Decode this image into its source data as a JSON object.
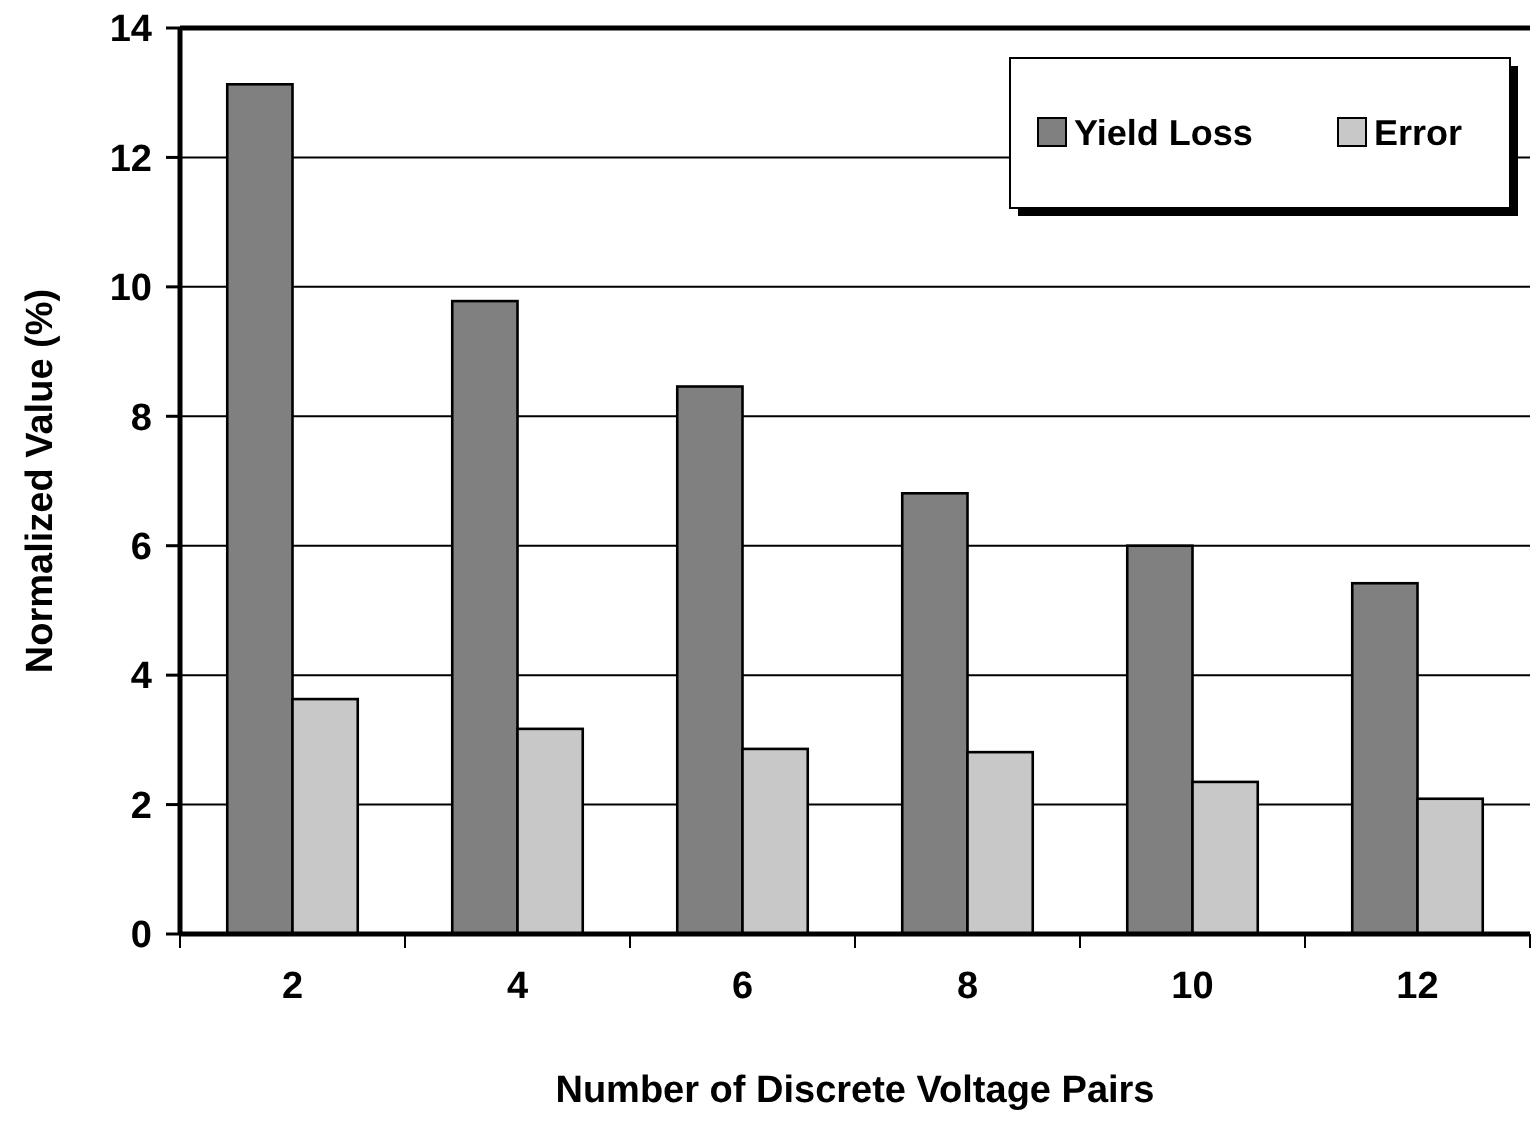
{
  "chart_data": {
    "type": "bar",
    "xlabel": "Number of Discrete Voltage Pairs",
    "ylabel": "Normalized Value (%)",
    "categories": [
      "2",
      "4",
      "6",
      "8",
      "10",
      "12"
    ],
    "series": [
      {
        "name": "Yield Loss",
        "color": "#808080",
        "values": [
          13.13,
          9.78,
          8.46,
          6.81,
          6.0,
          5.42
        ]
      },
      {
        "name": "Error",
        "color": "#c8c8c8",
        "values": [
          3.63,
          3.17,
          2.86,
          2.81,
          2.35,
          2.09
        ]
      }
    ],
    "ylim": [
      0,
      14
    ],
    "yticks": [
      0,
      2,
      4,
      6,
      8,
      10,
      12,
      14
    ],
    "grid": "y",
    "legend": "top right"
  }
}
